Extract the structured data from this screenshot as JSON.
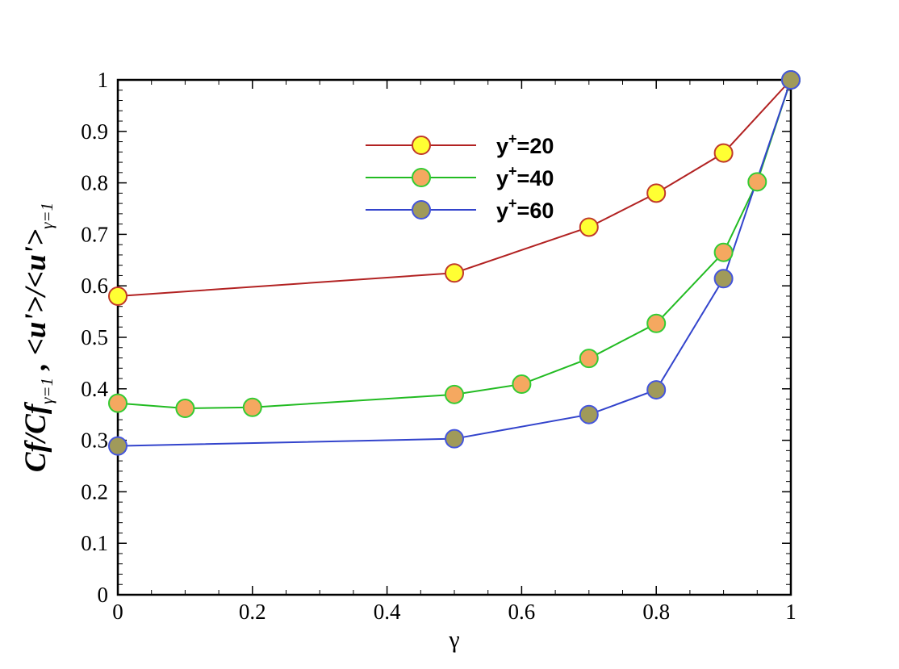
{
  "chart_data": {
    "type": "line",
    "xlabel": "γ",
    "ylabel": {
      "part1": "Cf/Cf",
      "part1_sub": "γ=1",
      "separator": " , ",
      "part2": "<u'>/<u'>",
      "part2_sub": "γ=1"
    },
    "xlim": [
      0,
      1
    ],
    "ylim": [
      0,
      1
    ],
    "x_ticks": [
      0,
      0.2,
      0.4,
      0.6,
      0.8,
      1
    ],
    "x_tick_labels": [
      "0",
      "0.2",
      "0.4",
      "0.6",
      "0.8",
      "1"
    ],
    "y_ticks": [
      0,
      0.1,
      0.2,
      0.3,
      0.4,
      0.5,
      0.6,
      0.7,
      0.8,
      0.9,
      1
    ],
    "y_tick_labels": [
      "0",
      "0.1",
      "0.2",
      "0.3",
      "0.4",
      "0.5",
      "0.6",
      "0.7",
      "0.8",
      "0.9",
      "1"
    ],
    "grid": false,
    "legend_position": "top-center",
    "series": [
      {
        "name_base": "y",
        "name_sup": "+",
        "name_rest": "=20",
        "line_color": "#b22222",
        "marker_fill": "#ffff33",
        "marker_edge": "#c0392b",
        "x": [
          0,
          0.5,
          0.7,
          0.8,
          0.9,
          1
        ],
        "y": [
          0.58,
          0.625,
          0.714,
          0.78,
          0.858,
          1.0
        ]
      },
      {
        "name_base": "y",
        "name_sup": "+",
        "name_rest": "=40",
        "line_color": "#22bb22",
        "marker_fill": "#f5a860",
        "marker_edge": "#33cc33",
        "x": [
          0,
          0.1,
          0.2,
          0.5,
          0.6,
          0.7,
          0.8,
          0.9,
          0.95,
          1
        ],
        "y": [
          0.372,
          0.362,
          0.364,
          0.389,
          0.409,
          0.459,
          0.527,
          0.665,
          0.802,
          1.0
        ]
      },
      {
        "name_base": "y",
        "name_sup": "+",
        "name_rest": "=60",
        "line_color": "#3344cc",
        "marker_fill": "#a09a5a",
        "marker_edge": "#4455dd",
        "x": [
          0,
          0.5,
          0.7,
          0.8,
          0.9,
          1
        ],
        "y": [
          0.289,
          0.303,
          0.35,
          0.398,
          0.614,
          1.0
        ]
      }
    ]
  }
}
